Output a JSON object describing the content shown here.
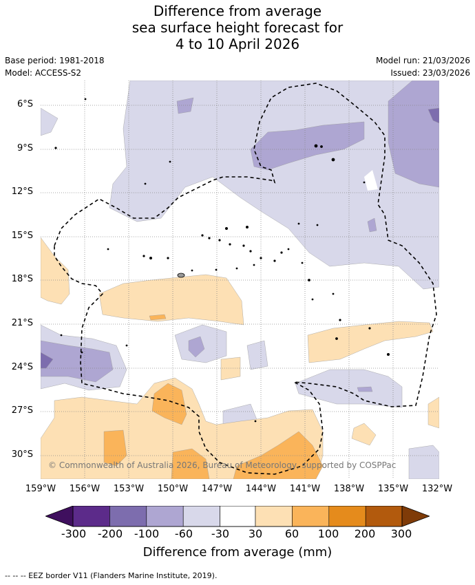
{
  "title": {
    "line1": "Difference from average",
    "line2": "sea surface height forecast for",
    "line3": "4 to 10 April 2026"
  },
  "meta": {
    "base_period": "Base period: 1981-2018",
    "model": "Model: ACCESS-S2",
    "model_run": "Model run: 21/03/2026",
    "issued": "Issued: 23/03/2026"
  },
  "axes": {
    "lat_labels": [
      "6°S",
      "9°S",
      "12°S",
      "15°S",
      "18°S",
      "21°S",
      "24°S",
      "27°S",
      "30°S"
    ],
    "lon_labels": [
      "159°W",
      "156°W",
      "153°W",
      "150°W",
      "147°W",
      "144°W",
      "141°W",
      "138°W",
      "135°W",
      "132°W"
    ]
  },
  "colorbar": {
    "title": "Difference from average (mm)",
    "tick_labels": [
      "-300",
      "-200",
      "-100",
      "-60",
      "-30",
      "30",
      "60",
      "100",
      "200",
      "300"
    ],
    "colors": {
      "lt_m300": "#3f0f5e",
      "m300_m200": "#5c2b8a",
      "m200_m100": "#7d6dae",
      "m100_m60": "#aea6d2",
      "m60_m30": "#d8d8ea",
      "m30_30": "#ffffff",
      "p30_60": "#fde0b4",
      "p60_100": "#fab45a",
      "p100_200": "#e58b1c",
      "p200_300": "#b25a0d",
      "gt_300": "#7f3b08"
    }
  },
  "legend_note": "--  --  -- EEZ border V11 (Flanders Marine Institute, 2019).",
  "copyright": "© Commonwealth of Australia 2026, Bureau of Meteorology, supported by COSPPac"
}
